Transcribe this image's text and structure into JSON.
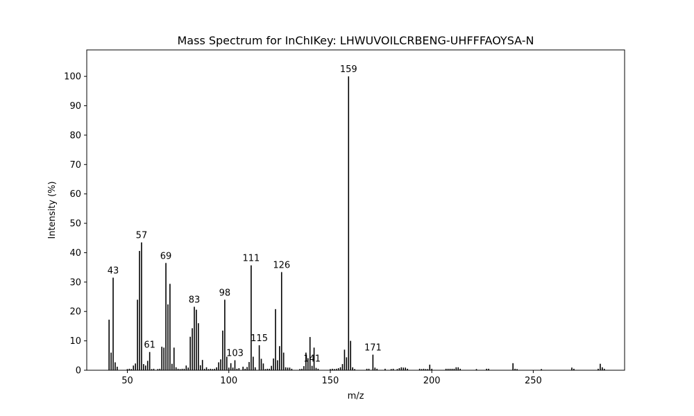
{
  "chart_data": {
    "type": "bar",
    "title": "Mass Spectrum for InChIKey: LHWUVOILCRBENG-UHFFFAOYSA-N",
    "xlabel": "m/z",
    "ylabel": "Intensity (%)",
    "xlim": [
      30,
      295
    ],
    "ylim": [
      0,
      109
    ],
    "xticks": [
      50,
      100,
      150,
      200,
      250
    ],
    "yticks": [
      0,
      10,
      20,
      30,
      40,
      50,
      60,
      70,
      80,
      90,
      100
    ],
    "grid": false,
    "bar_color": "#000000",
    "peaks": [
      {
        "mz": 41,
        "intensity": 17.2
      },
      {
        "mz": 42,
        "intensity": 6.0
      },
      {
        "mz": 43,
        "intensity": 31.5,
        "label": "43"
      },
      {
        "mz": 44,
        "intensity": 2.7
      },
      {
        "mz": 45,
        "intensity": 1.2
      },
      {
        "mz": 50,
        "intensity": 0.4
      },
      {
        "mz": 51,
        "intensity": 0.5
      },
      {
        "mz": 52,
        "intensity": 0.4
      },
      {
        "mz": 53,
        "intensity": 1.6
      },
      {
        "mz": 54,
        "intensity": 2.3
      },
      {
        "mz": 55,
        "intensity": 24.0
      },
      {
        "mz": 56,
        "intensity": 40.6
      },
      {
        "mz": 57,
        "intensity": 43.5,
        "label": "57"
      },
      {
        "mz": 58,
        "intensity": 2.1
      },
      {
        "mz": 59,
        "intensity": 1.6
      },
      {
        "mz": 60,
        "intensity": 3.2
      },
      {
        "mz": 61,
        "intensity": 6.2,
        "label": "61"
      },
      {
        "mz": 62,
        "intensity": 0.4
      },
      {
        "mz": 63,
        "intensity": 0.5
      },
      {
        "mz": 65,
        "intensity": 0.4
      },
      {
        "mz": 66,
        "intensity": 0.5
      },
      {
        "mz": 67,
        "intensity": 8.0
      },
      {
        "mz": 68,
        "intensity": 7.7
      },
      {
        "mz": 69,
        "intensity": 36.5,
        "label": "69"
      },
      {
        "mz": 70,
        "intensity": 22.4
      },
      {
        "mz": 71,
        "intensity": 29.4
      },
      {
        "mz": 72,
        "intensity": 2.2
      },
      {
        "mz": 73,
        "intensity": 7.7
      },
      {
        "mz": 74,
        "intensity": 1.0
      },
      {
        "mz": 75,
        "intensity": 0.5
      },
      {
        "mz": 76,
        "intensity": 0.4
      },
      {
        "mz": 77,
        "intensity": 0.5
      },
      {
        "mz": 78,
        "intensity": 0.5
      },
      {
        "mz": 79,
        "intensity": 1.6
      },
      {
        "mz": 80,
        "intensity": 0.9
      },
      {
        "mz": 81,
        "intensity": 11.4
      },
      {
        "mz": 82,
        "intensity": 14.3
      },
      {
        "mz": 83,
        "intensity": 21.6,
        "label": "83"
      },
      {
        "mz": 84,
        "intensity": 20.6
      },
      {
        "mz": 85,
        "intensity": 16.0
      },
      {
        "mz": 86,
        "intensity": 1.7
      },
      {
        "mz": 87,
        "intensity": 3.5
      },
      {
        "mz": 88,
        "intensity": 0.5
      },
      {
        "mz": 89,
        "intensity": 1.0
      },
      {
        "mz": 90,
        "intensity": 0.4
      },
      {
        "mz": 91,
        "intensity": 0.5
      },
      {
        "mz": 92,
        "intensity": 0.4
      },
      {
        "mz": 93,
        "intensity": 0.5
      },
      {
        "mz": 94,
        "intensity": 1.0
      },
      {
        "mz": 95,
        "intensity": 2.7
      },
      {
        "mz": 96,
        "intensity": 3.7
      },
      {
        "mz": 97,
        "intensity": 13.5
      },
      {
        "mz": 98,
        "intensity": 24.0,
        "label": "98"
      },
      {
        "mz": 99,
        "intensity": 4.6
      },
      {
        "mz": 100,
        "intensity": 0.9
      },
      {
        "mz": 101,
        "intensity": 2.4
      },
      {
        "mz": 102,
        "intensity": 0.9
      },
      {
        "mz": 103,
        "intensity": 3.4,
        "label": "103"
      },
      {
        "mz": 104,
        "intensity": 0.5
      },
      {
        "mz": 105,
        "intensity": 0.7
      },
      {
        "mz": 107,
        "intensity": 1.2
      },
      {
        "mz": 108,
        "intensity": 0.5
      },
      {
        "mz": 109,
        "intensity": 1.1
      },
      {
        "mz": 110,
        "intensity": 2.8
      },
      {
        "mz": 111,
        "intensity": 35.7,
        "label": "111"
      },
      {
        "mz": 112,
        "intensity": 4.6
      },
      {
        "mz": 113,
        "intensity": 1.0
      },
      {
        "mz": 115,
        "intensity": 8.5,
        "label": "115"
      },
      {
        "mz": 116,
        "intensity": 3.9
      },
      {
        "mz": 117,
        "intensity": 2.3
      },
      {
        "mz": 118,
        "intensity": 0.4
      },
      {
        "mz": 119,
        "intensity": 0.5
      },
      {
        "mz": 120,
        "intensity": 0.5
      },
      {
        "mz": 121,
        "intensity": 1.5
      },
      {
        "mz": 122,
        "intensity": 4.0
      },
      {
        "mz": 123,
        "intensity": 20.8
      },
      {
        "mz": 124,
        "intensity": 3.4
      },
      {
        "mz": 125,
        "intensity": 8.2
      },
      {
        "mz": 126,
        "intensity": 33.4,
        "label": "126"
      },
      {
        "mz": 127,
        "intensity": 6.0
      },
      {
        "mz": 128,
        "intensity": 1.0
      },
      {
        "mz": 129,
        "intensity": 0.9
      },
      {
        "mz": 130,
        "intensity": 0.9
      },
      {
        "mz": 131,
        "intensity": 0.5
      },
      {
        "mz": 135,
        "intensity": 0.4
      },
      {
        "mz": 136,
        "intensity": 0.5
      },
      {
        "mz": 137,
        "intensity": 1.4
      },
      {
        "mz": 138,
        "intensity": 6.0
      },
      {
        "mz": 139,
        "intensity": 4.1
      },
      {
        "mz": 140,
        "intensity": 11.3
      },
      {
        "mz": 141,
        "intensity": 1.5,
        "label": "141"
      },
      {
        "mz": 142,
        "intensity": 7.7
      },
      {
        "mz": 143,
        "intensity": 0.8
      },
      {
        "mz": 144,
        "intensity": 0.5
      },
      {
        "mz": 150,
        "intensity": 0.4
      },
      {
        "mz": 151,
        "intensity": 0.5
      },
      {
        "mz": 152,
        "intensity": 0.4
      },
      {
        "mz": 153,
        "intensity": 0.5
      },
      {
        "mz": 154,
        "intensity": 0.7
      },
      {
        "mz": 155,
        "intensity": 1.0
      },
      {
        "mz": 156,
        "intensity": 2.1
      },
      {
        "mz": 157,
        "intensity": 7.0
      },
      {
        "mz": 158,
        "intensity": 4.4
      },
      {
        "mz": 159,
        "intensity": 100.0,
        "label": "159"
      },
      {
        "mz": 160,
        "intensity": 10.0
      },
      {
        "mz": 161,
        "intensity": 1.0
      },
      {
        "mz": 162,
        "intensity": 0.4
      },
      {
        "mz": 168,
        "intensity": 0.5
      },
      {
        "mz": 169,
        "intensity": 0.5
      },
      {
        "mz": 171,
        "intensity": 5.3,
        "label": "171"
      },
      {
        "mz": 172,
        "intensity": 0.9
      },
      {
        "mz": 173,
        "intensity": 0.5
      },
      {
        "mz": 177,
        "intensity": 0.5
      },
      {
        "mz": 180,
        "intensity": 0.4
      },
      {
        "mz": 181,
        "intensity": 0.5
      },
      {
        "mz": 183,
        "intensity": 0.4
      },
      {
        "mz": 184,
        "intensity": 0.7
      },
      {
        "mz": 185,
        "intensity": 1.0
      },
      {
        "mz": 186,
        "intensity": 0.9
      },
      {
        "mz": 187,
        "intensity": 0.9
      },
      {
        "mz": 188,
        "intensity": 0.5
      },
      {
        "mz": 194,
        "intensity": 0.5
      },
      {
        "mz": 195,
        "intensity": 0.4
      },
      {
        "mz": 196,
        "intensity": 0.5
      },
      {
        "mz": 197,
        "intensity": 0.4
      },
      {
        "mz": 198,
        "intensity": 0.4
      },
      {
        "mz": 199,
        "intensity": 1.9
      },
      {
        "mz": 200,
        "intensity": 0.5
      },
      {
        "mz": 207,
        "intensity": 0.5
      },
      {
        "mz": 208,
        "intensity": 0.5
      },
      {
        "mz": 209,
        "intensity": 0.5
      },
      {
        "mz": 210,
        "intensity": 0.5
      },
      {
        "mz": 211,
        "intensity": 0.5
      },
      {
        "mz": 212,
        "intensity": 1.0
      },
      {
        "mz": 213,
        "intensity": 1.0
      },
      {
        "mz": 214,
        "intensity": 0.5
      },
      {
        "mz": 222,
        "intensity": 0.4
      },
      {
        "mz": 227,
        "intensity": 0.5
      },
      {
        "mz": 228,
        "intensity": 0.5
      },
      {
        "mz": 240,
        "intensity": 2.4
      },
      {
        "mz": 241,
        "intensity": 0.5
      },
      {
        "mz": 242,
        "intensity": 0.4
      },
      {
        "mz": 254,
        "intensity": 0.4
      },
      {
        "mz": 269,
        "intensity": 0.9
      },
      {
        "mz": 270,
        "intensity": 0.5
      },
      {
        "mz": 282,
        "intensity": 0.5
      },
      {
        "mz": 283,
        "intensity": 2.2
      },
      {
        "mz": 284,
        "intensity": 1.0
      },
      {
        "mz": 285,
        "intensity": 0.5
      }
    ]
  }
}
